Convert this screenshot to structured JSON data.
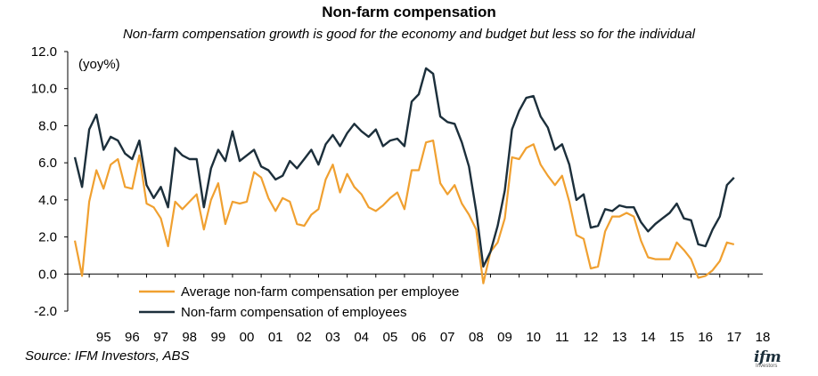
{
  "chart_data": {
    "type": "line",
    "title": "Non-farm compensation",
    "subtitle": "Non-farm compensation growth is good for the economy and budget but less so for the individual",
    "ylabel": "(yoy%)",
    "xlabel": "",
    "ylim": [
      -2.0,
      12.0
    ],
    "yticks": [
      "12.0",
      "10.0",
      "8.0",
      "6.0",
      "4.0",
      "2.0",
      "0.0",
      "-2.0"
    ],
    "x_start": 1994.5,
    "x_step": 0.25,
    "x_tick_labels": [
      {
        "label": "95",
        "x": 1995.5
      },
      {
        "label": "96",
        "x": 1996.5
      },
      {
        "label": "97",
        "x": 1997.5
      },
      {
        "label": "98",
        "x": 1998.5
      },
      {
        "label": "99",
        "x": 1999.5
      },
      {
        "label": "00",
        "x": 2000.5
      },
      {
        "label": "01",
        "x": 2001.5
      },
      {
        "label": "02",
        "x": 2002.5
      },
      {
        "label": "03",
        "x": 2003.5
      },
      {
        "label": "04",
        "x": 2004.5
      },
      {
        "label": "05",
        "x": 2005.5
      },
      {
        "label": "06",
        "x": 2006.5
      },
      {
        "label": "07",
        "x": 2007.5
      },
      {
        "label": "08",
        "x": 2008.5
      },
      {
        "label": "09",
        "x": 2009.5
      },
      {
        "label": "10",
        "x": 2010.5
      },
      {
        "label": "11",
        "x": 2011.5
      },
      {
        "label": "12",
        "x": 2012.5
      },
      {
        "label": "13",
        "x": 2013.5
      },
      {
        "label": "14",
        "x": 2014.5
      },
      {
        "label": "15",
        "x": 2015.5
      },
      {
        "label": "16",
        "x": 2016.5
      },
      {
        "label": "17",
        "x": 2017.5
      },
      {
        "label": "18",
        "x": 2018.5
      }
    ],
    "series": [
      {
        "name": "Average non-farm compensation per employee",
        "color": "#f0a030",
        "values": [
          1.8,
          -0.1,
          3.9,
          5.6,
          4.6,
          5.9,
          6.2,
          4.7,
          4.6,
          6.4,
          3.8,
          3.6,
          3.0,
          1.5,
          3.9,
          3.5,
          3.9,
          4.3,
          2.4,
          4.0,
          4.9,
          2.7,
          3.9,
          3.8,
          3.9,
          5.5,
          5.2,
          4.1,
          3.4,
          4.1,
          3.9,
          2.7,
          2.6,
          3.2,
          3.5,
          5.1,
          5.9,
          4.4,
          5.4,
          4.7,
          4.3,
          3.6,
          3.4,
          3.7,
          4.1,
          4.4,
          3.5,
          5.6,
          5.6,
          7.1,
          7.2,
          4.9,
          4.3,
          4.8,
          3.8,
          3.2,
          2.4,
          -0.5,
          1.2,
          1.7,
          3.0,
          6.3,
          6.2,
          6.8,
          7.0,
          5.9,
          5.3,
          4.8,
          5.3,
          3.9,
          2.1,
          1.9,
          0.3,
          0.4,
          2.3,
          3.1,
          3.1,
          3.3,
          3.1,
          1.8,
          0.9,
          0.8,
          0.8,
          0.8,
          1.7,
          1.3,
          0.8,
          -0.2,
          -0.1,
          0.2,
          0.7,
          1.7,
          1.6
        ]
      },
      {
        "name": "Non-farm compensation of employees",
        "color": "#1c2f3b",
        "values": [
          6.3,
          4.7,
          7.8,
          8.6,
          6.7,
          7.4,
          7.2,
          6.5,
          6.2,
          7.2,
          4.8,
          4.1,
          4.7,
          3.6,
          6.8,
          6.4,
          6.2,
          6.2,
          3.6,
          5.7,
          6.7,
          6.1,
          7.7,
          6.1,
          6.4,
          6.7,
          5.8,
          5.6,
          5.1,
          5.3,
          6.1,
          5.7,
          6.2,
          6.7,
          5.9,
          7.0,
          7.5,
          6.9,
          7.6,
          8.1,
          7.7,
          7.4,
          7.8,
          6.9,
          7.2,
          7.3,
          6.9,
          9.3,
          9.7,
          11.1,
          10.8,
          8.5,
          8.2,
          8.1,
          7.1,
          5.8,
          3.4,
          0.4,
          1.2,
          2.6,
          4.5,
          7.8,
          8.8,
          9.5,
          9.6,
          8.5,
          7.9,
          6.7,
          7.0,
          5.9,
          4.0,
          4.3,
          2.5,
          2.6,
          3.5,
          3.4,
          3.7,
          3.6,
          3.6,
          2.8,
          2.3,
          2.7,
          3.0,
          3.3,
          3.8,
          3.0,
          2.9,
          1.6,
          1.5,
          2.4,
          3.1,
          4.8,
          5.2
        ]
      }
    ]
  },
  "legend": {
    "items": [
      {
        "label": "Average non-farm compensation per employee",
        "color": "#f0a030"
      },
      {
        "label": "Non-farm compensation of employees",
        "color": "#1c2f3b"
      }
    ]
  },
  "footer": {
    "source": "Source: IFM Investors, ABS",
    "logo_text": "ifm",
    "logo_sub": "Investors"
  }
}
